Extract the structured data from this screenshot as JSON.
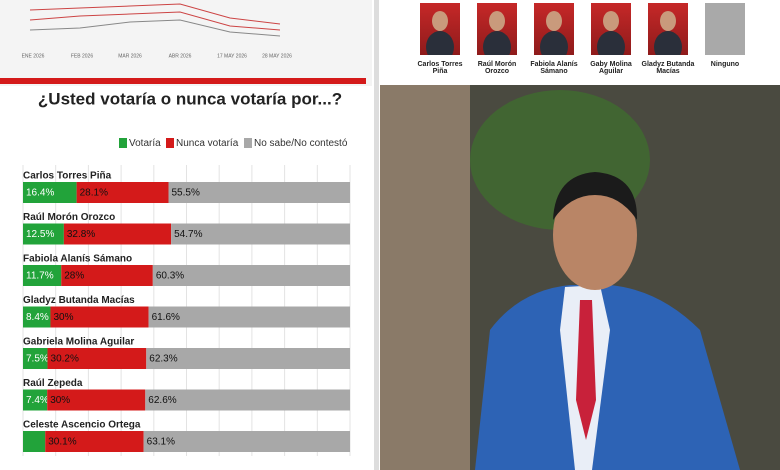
{
  "header_strip": {
    "x_labels": [
      "ENE 2026",
      "FEB 2026",
      "MAR 2026",
      "ABR 2026",
      "17 MAY 2026",
      "28 MAY 2026"
    ]
  },
  "candidates": [
    "Carlos Torres Piña",
    "Raúl Morón Orozco",
    "Fabiola Alanís Sámano",
    "Gaby Molina Aguilar",
    "Gladyz Butanda Macías",
    "Ninguno"
  ],
  "chart_data": {
    "type": "stacked-bar-horizontal",
    "title": "¿Usted votaría o nunca votaría por...?",
    "categories": [
      "Carlos Torres Piña",
      "Raúl Morón Orozco",
      "Fabiola Alanís Sámano",
      "Gladyz Butanda Macías",
      "Gabriela Molina Aguilar",
      "Raúl Zepeda",
      "Celeste Ascencio Ortega"
    ],
    "series": [
      {
        "name": "Votaría",
        "color": "#22a33a",
        "values": [
          16.4,
          12.5,
          11.7,
          8.4,
          7.5,
          7.4,
          6.8
        ],
        "value_labels": [
          "16.4%",
          "12.5%",
          "11.7%",
          "8.4%",
          "7.5%",
          "7.4%",
          null
        ]
      },
      {
        "name": "Nunca votaría",
        "color": "#d41a1a",
        "values": [
          28.1,
          32.8,
          28,
          30,
          30.2,
          30,
          30.1
        ],
        "value_labels": [
          "28.1%",
          "32.8%",
          "28%",
          "30%",
          "30.2%",
          "30%",
          "30.1%"
        ]
      },
      {
        "name": "No sabe/No contestó",
        "color": "#a8a8a8",
        "values": [
          55.5,
          54.7,
          60.3,
          61.6,
          62.3,
          62.6,
          63.1
        ],
        "value_labels": [
          "55.5%",
          "54.7%",
          "60.3%",
          "61.6%",
          "62.3%",
          "62.6%",
          "63.1%"
        ]
      }
    ],
    "xlim": [
      0,
      100
    ],
    "xticks": [
      {
        "value": 0,
        "label": "0%"
      },
      {
        "value": 10,
        "label": "10%"
      },
      {
        "value": 20,
        "label": "20%"
      },
      {
        "value": 30,
        "label": "30%"
      },
      {
        "value": 40,
        "label": "40%"
      },
      {
        "value": 50,
        "label": "50%"
      },
      {
        "value": 60,
        "label": "60%"
      },
      {
        "value": 70,
        "label": "70%"
      },
      {
        "value": 80,
        "label": "80%"
      },
      {
        "value": 90,
        "label": "90%"
      },
      {
        "value": 100,
        "label": "100%"
      }
    ],
    "grid": true
  }
}
